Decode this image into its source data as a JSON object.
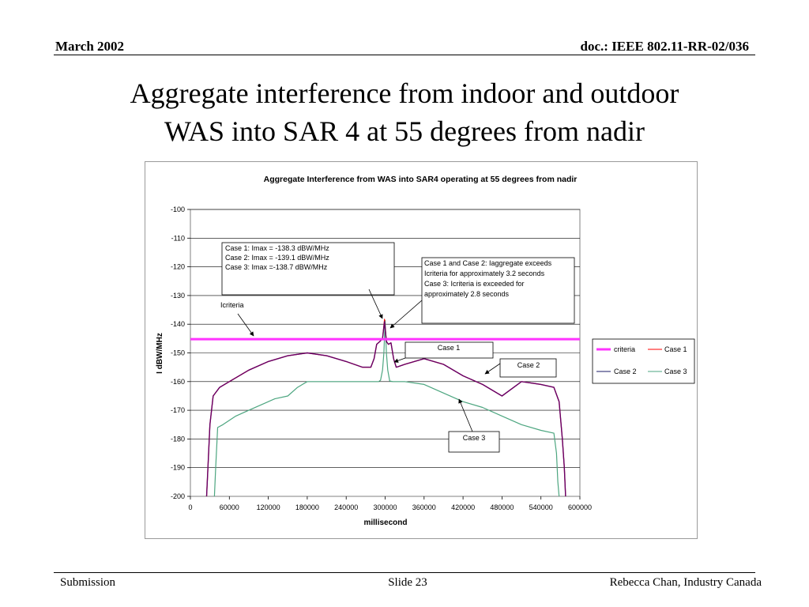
{
  "header": {
    "date": "March 2002",
    "doc": "doc.: IEEE 802.11-RR-02/036"
  },
  "slide_title_line1": "Aggregate interference from indoor and outdoor",
  "slide_title_line2": "WAS into SAR 4 at 55 degrees from nadir",
  "footer": {
    "left": "Submission",
    "center": "Slide 23",
    "right": "Rebecca Chan, Industry Canada"
  },
  "colors": {
    "criteria": "#ff33ff",
    "case1": "#ff0000",
    "case2": "#1a1a66",
    "case3": "#4da680",
    "case_overlap": "#660066"
  },
  "chart_data": {
    "type": "line",
    "title": "Aggregate Interference from WAS into SAR4  operating at 55 degrees from nadir",
    "xlabel": "millisecond",
    "ylabel": "I dBW/MHz",
    "xlim": [
      0,
      600000
    ],
    "ylim": [
      -200,
      -100
    ],
    "xticks": [
      0,
      60000,
      120000,
      180000,
      240000,
      300000,
      360000,
      420000,
      480000,
      540000,
      600000
    ],
    "yticks": [
      -100,
      -110,
      -120,
      -130,
      -140,
      -150,
      -160,
      -170,
      -180,
      -190,
      -200
    ],
    "grid": "horizontal",
    "legend": "right",
    "series": [
      {
        "name": "criteria",
        "x": [
          0,
          600000
        ],
        "y": [
          -145.2,
          -145.2
        ]
      },
      {
        "name": "Case 1",
        "x": [
          25000,
          27000,
          30000,
          35000,
          45000,
          60000,
          90000,
          120000,
          150000,
          180000,
          210000,
          240000,
          265000,
          278000,
          283000,
          287000,
          292000,
          296000,
          299000,
          302000,
          305000,
          309000,
          313000,
          317000,
          320000,
          330000,
          360000,
          390000,
          420000,
          450000,
          480000,
          510000,
          540000,
          560000,
          568000,
          573000,
          576000,
          578000
        ],
        "y": [
          -200,
          -190,
          -175,
          -165,
          -162,
          -160,
          -156,
          -153,
          -151,
          -150,
          -151,
          -153,
          -155,
          -155,
          -152,
          -147,
          -146,
          -145,
          -138.3,
          -146,
          -147,
          -146.5,
          -152,
          -155,
          -154.8,
          -154,
          -152,
          -154,
          -158,
          -161,
          -165,
          -160,
          -161,
          -162,
          -167,
          -180,
          -190,
          -200
        ]
      },
      {
        "name": "Case 2",
        "x": [
          25000,
          27000,
          30000,
          35000,
          45000,
          60000,
          90000,
          120000,
          150000,
          180000,
          210000,
          240000,
          265000,
          278000,
          283000,
          287000,
          292000,
          296000,
          299000,
          302000,
          305000,
          309000,
          313000,
          317000,
          320000,
          330000,
          360000,
          390000,
          420000,
          450000,
          480000,
          510000,
          540000,
          560000,
          568000,
          573000,
          576000,
          578000
        ],
        "y": [
          -200,
          -190,
          -175,
          -165,
          -162,
          -160,
          -156,
          -153,
          -151,
          -150,
          -151,
          -153,
          -155,
          -155,
          -152,
          -147,
          -146,
          -145,
          -139.1,
          -146,
          -147,
          -146.5,
          -152,
          -155,
          -154.8,
          -154,
          -152,
          -154,
          -158,
          -161,
          -165,
          -160,
          -161,
          -162,
          -167,
          -180,
          -190,
          -200
        ]
      },
      {
        "name": "Case 3",
        "x": [
          37000,
          39000,
          42000,
          50000,
          70000,
          90000,
          110000,
          130000,
          150000,
          165000,
          180000,
          200000,
          230000,
          260000,
          280000,
          290000,
          293000,
          296000,
          298000,
          300000,
          302000,
          304000,
          307000,
          312000,
          330000,
          360000,
          390000,
          420000,
          450000,
          480000,
          510000,
          540000,
          560000,
          564000,
          566000,
          568000
        ],
        "y": [
          -200,
          -190,
          -176,
          -175,
          -172,
          -170,
          -168,
          -166,
          -165,
          -162,
          -160,
          -160,
          -160,
          -160,
          -160,
          -160,
          -159.5,
          -156,
          -150,
          -138.7,
          -150,
          -156,
          -159.8,
          -160,
          -160,
          -161,
          -164,
          -167,
          -169,
          -172,
          -175,
          -177,
          -178,
          -185,
          -195,
          -200
        ]
      }
    ],
    "annotations": [
      {
        "lines": [
          "Case 1:  Imax = -138.3 dBW/MHz",
          "Case 2:  Imax = -139.1 dBW/MHz",
          "Case 3:  Imax =-138.7 dBW/MHz"
        ]
      },
      {
        "lines": [
          "Case 1 and Case 2:  Iaggregate exceeds",
          "Icriteria for approximately 3.2 seconds",
          "Case 3:  Icriteria is exceeded for",
          "approximately 2.8 seconds"
        ]
      },
      {
        "lines": [
          "Icriteria"
        ]
      },
      {
        "lines": [
          "Case 1"
        ]
      },
      {
        "lines": [
          "Case 2"
        ]
      },
      {
        "lines": [
          "Case 3"
        ]
      }
    ]
  }
}
